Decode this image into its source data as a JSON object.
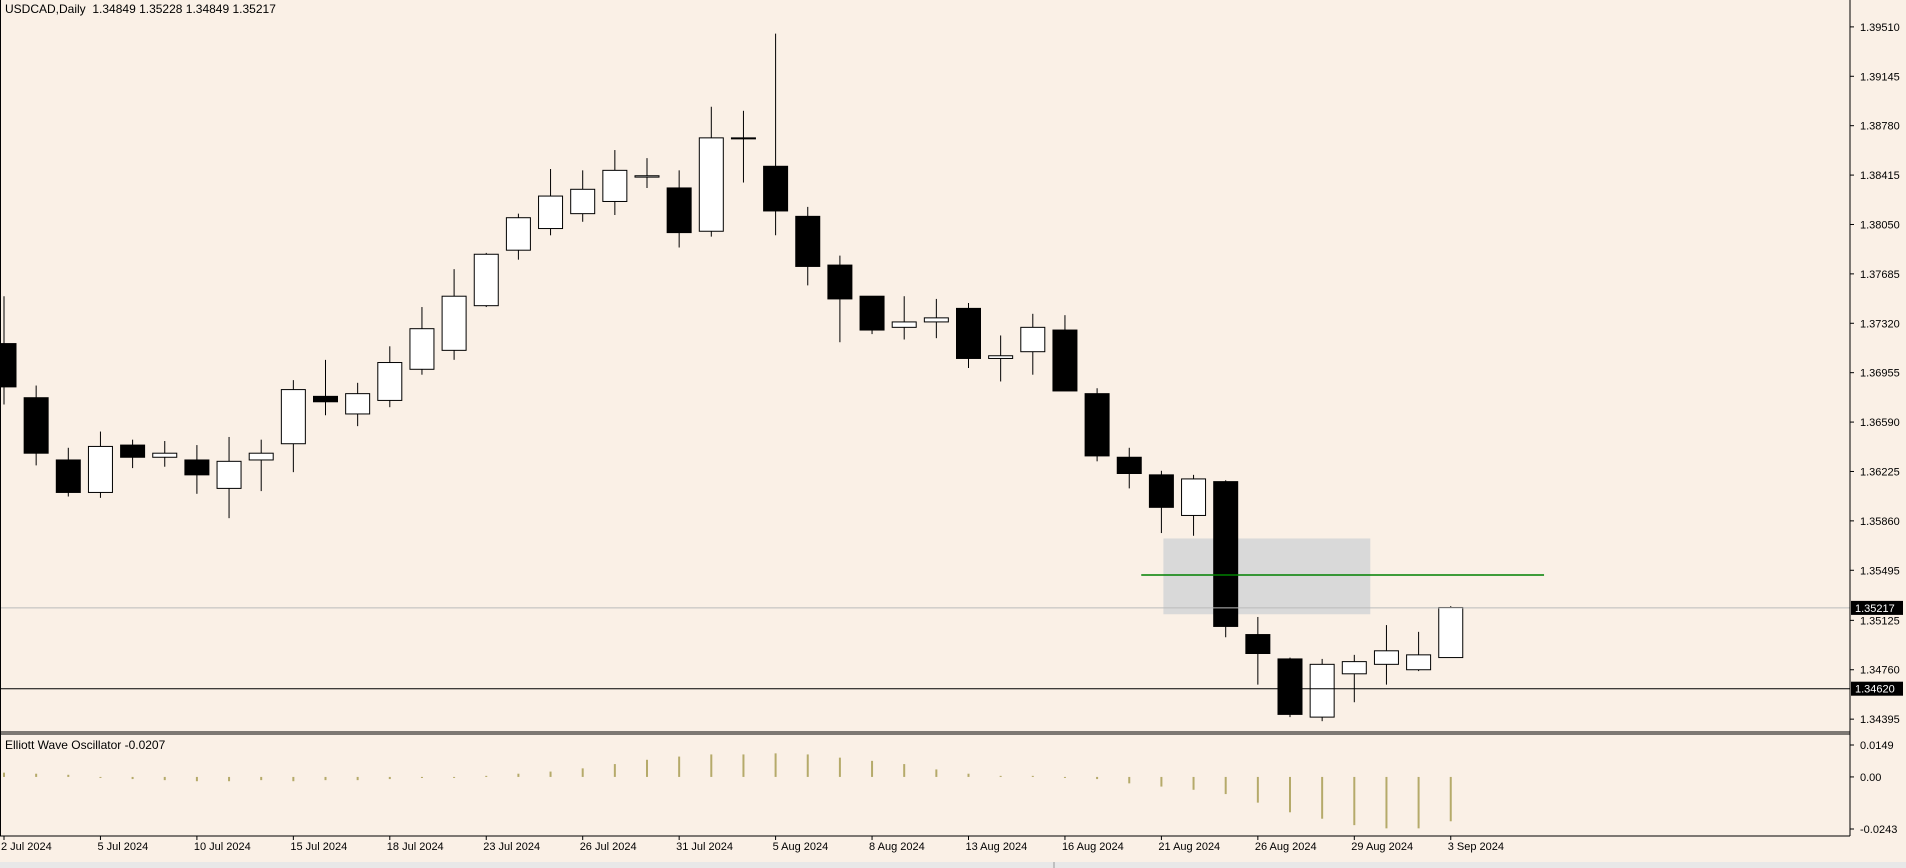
{
  "header": {
    "symbol": "USDCAD,Daily",
    "ohlc": "1.34849 1.35228 1.34849 1.35217"
  },
  "oscillator": {
    "title": "Elliott Wave Oscillator -0.0207",
    "ticks": [
      "0.0149",
      "0.00",
      "-0.0243"
    ],
    "tick_values": [
      0.0149,
      0.0,
      -0.0243
    ]
  },
  "price_axis": {
    "ticks": [
      "1.39510",
      "1.39145",
      "1.38780",
      "1.38415",
      "1.38050",
      "1.37685",
      "1.37320",
      "1.36955",
      "1.36590",
      "1.36225",
      "1.35860",
      "1.35495",
      "1.35125",
      "1.34760",
      "1.34395"
    ],
    "current_price": "1.35217",
    "hline_price": "1.34620"
  },
  "date_axis": [
    "2 Jul 2024",
    "5 Jul 2024",
    "10 Jul 2024",
    "15 Jul 2024",
    "18 Jul 2024",
    "23 Jul 2024",
    "26 Jul 2024",
    "31 Jul 2024",
    "5 Aug 2024",
    "8 Aug 2024",
    "13 Aug 2024",
    "16 Aug 2024",
    "21 Aug 2024",
    "26 Aug 2024",
    "29 Aug 2024",
    "3 Sep 2024"
  ],
  "colors": {
    "background": "#FAF0E6",
    "bull_body": "#FFFFFF",
    "bear_body": "#000000",
    "osc_bar": "#B5AA6A",
    "green_line": "#008000",
    "zone": "#D9D9D9"
  },
  "chart_data": {
    "type": "candlestick",
    "title": "USDCAD,Daily",
    "ylim": [
      1.343,
      1.3962
    ],
    "zone": {
      "from_index": 36,
      "to_index": 42,
      "price_low": 1.3517,
      "price_high": 1.3573
    },
    "green_level": {
      "price": 1.3546,
      "from_index": 35,
      "to_index": 47
    },
    "candles": [
      {
        "date": "2 Jul 2024",
        "o": 1.3717,
        "h": 1.3752,
        "l": 1.3672,
        "c": 1.3685
      },
      {
        "date": "3 Jul 2024",
        "o": 1.3677,
        "h": 1.3686,
        "l": 1.3627,
        "c": 1.3636
      },
      {
        "date": "4 Jul 2024",
        "o": 1.3631,
        "h": 1.364,
        "l": 1.3604,
        "c": 1.3607
      },
      {
        "date": "5 Jul 2024",
        "o": 1.3607,
        "h": 1.3652,
        "l": 1.3603,
        "c": 1.3641
      },
      {
        "date": "8 Jul 2024",
        "o": 1.3642,
        "h": 1.3646,
        "l": 1.3625,
        "c": 1.3633
      },
      {
        "date": "9 Jul 2024",
        "o": 1.3633,
        "h": 1.3645,
        "l": 1.3626,
        "c": 1.3636
      },
      {
        "date": "10 Jul 2024",
        "o": 1.3631,
        "h": 1.3642,
        "l": 1.3606,
        "c": 1.362
      },
      {
        "date": "11 Jul 2024",
        "o": 1.361,
        "h": 1.3648,
        "l": 1.3588,
        "c": 1.363
      },
      {
        "date": "12 Jul 2024",
        "o": 1.3631,
        "h": 1.3646,
        "l": 1.3608,
        "c": 1.3636
      },
      {
        "date": "15 Jul 2024",
        "o": 1.3643,
        "h": 1.369,
        "l": 1.3622,
        "c": 1.3683
      },
      {
        "date": "16 Jul 2024",
        "o": 1.3678,
        "h": 1.3705,
        "l": 1.3664,
        "c": 1.3674
      },
      {
        "date": "17 Jul 2024",
        "o": 1.3665,
        "h": 1.3688,
        "l": 1.3656,
        "c": 1.368
      },
      {
        "date": "18 Jul 2024",
        "o": 1.3675,
        "h": 1.3715,
        "l": 1.367,
        "c": 1.3703
      },
      {
        "date": "19 Jul 2024",
        "o": 1.3698,
        "h": 1.3744,
        "l": 1.3694,
        "c": 1.3728
      },
      {
        "date": "22 Jul 2024",
        "o": 1.3712,
        "h": 1.3772,
        "l": 1.3705,
        "c": 1.3752
      },
      {
        "date": "23 Jul 2024",
        "o": 1.3745,
        "h": 1.3784,
        "l": 1.3744,
        "c": 1.3783
      },
      {
        "date": "24 Jul 2024",
        "o": 1.3786,
        "h": 1.3813,
        "l": 1.3779,
        "c": 1.381
      },
      {
        "date": "25 Jul 2024",
        "o": 1.3802,
        "h": 1.3846,
        "l": 1.3797,
        "c": 1.3826
      },
      {
        "date": "26 Jul 2024",
        "o": 1.3813,
        "h": 1.3845,
        "l": 1.3807,
        "c": 1.3831
      },
      {
        "date": "29 Jul 2024",
        "o": 1.3822,
        "h": 1.386,
        "l": 1.3812,
        "c": 1.3845
      },
      {
        "date": "30 Jul 2024",
        "o": 1.384,
        "h": 1.3854,
        "l": 1.3832,
        "c": 1.3841
      },
      {
        "date": "31 Jul 2024",
        "o": 1.3832,
        "h": 1.3845,
        "l": 1.3788,
        "c": 1.3799
      },
      {
        "date": "1 Aug 2024",
        "o": 1.38,
        "h": 1.3892,
        "l": 1.3796,
        "c": 1.3869
      },
      {
        "date": "2 Aug 2024",
        "o": 1.3869,
        "h": 1.3889,
        "l": 1.3836,
        "c": 1.3869
      },
      {
        "date": "5 Aug 2024",
        "o": 1.3848,
        "h": 1.3946,
        "l": 1.3797,
        "c": 1.3815
      },
      {
        "date": "6 Aug 2024",
        "o": 1.3811,
        "h": 1.3818,
        "l": 1.376,
        "c": 1.3774
      },
      {
        "date": "7 Aug 2024",
        "o": 1.3775,
        "h": 1.3782,
        "l": 1.3718,
        "c": 1.375
      },
      {
        "date": "8 Aug 2024",
        "o": 1.3752,
        "h": 1.3751,
        "l": 1.3724,
        "c": 1.3727
      },
      {
        "date": "9 Aug 2024",
        "o": 1.3729,
        "h": 1.3752,
        "l": 1.372,
        "c": 1.3733
      },
      {
        "date": "12 Aug 2024",
        "o": 1.3733,
        "h": 1.375,
        "l": 1.3721,
        "c": 1.3736
      },
      {
        "date": "13 Aug 2024",
        "o": 1.3743,
        "h": 1.3747,
        "l": 1.3699,
        "c": 1.3706
      },
      {
        "date": "14 Aug 2024",
        "o": 1.3706,
        "h": 1.3723,
        "l": 1.3689,
        "c": 1.3708
      },
      {
        "date": "15 Aug 2024",
        "o": 1.3711,
        "h": 1.3739,
        "l": 1.3694,
        "c": 1.3729
      },
      {
        "date": "16 Aug 2024",
        "o": 1.3727,
        "h": 1.3738,
        "l": 1.3683,
        "c": 1.3682
      },
      {
        "date": "19 Aug 2024",
        "o": 1.368,
        "h": 1.3684,
        "l": 1.363,
        "c": 1.3634
      },
      {
        "date": "20 Aug 2024",
        "o": 1.3633,
        "h": 1.364,
        "l": 1.361,
        "c": 1.3621
      },
      {
        "date": "21 Aug 2024",
        "o": 1.362,
        "h": 1.3623,
        "l": 1.3577,
        "c": 1.3596
      },
      {
        "date": "22 Aug 2024",
        "o": 1.359,
        "h": 1.362,
        "l": 1.3575,
        "c": 1.3617
      },
      {
        "date": "23 Aug 2024",
        "o": 1.3615,
        "h": 1.3616,
        "l": 1.35,
        "c": 1.3508
      },
      {
        "date": "26 Aug 2024",
        "o": 1.3502,
        "h": 1.3515,
        "l": 1.3465,
        "c": 1.3488
      },
      {
        "date": "27 Aug 2024",
        "o": 1.3484,
        "h": 1.3485,
        "l": 1.3441,
        "c": 1.3443
      },
      {
        "date": "28 Aug 2024",
        "o": 1.3441,
        "h": 1.3484,
        "l": 1.3438,
        "c": 1.348
      },
      {
        "date": "29 Aug 2024",
        "o": 1.3473,
        "h": 1.3487,
        "l": 1.3452,
        "c": 1.3482
      },
      {
        "date": "30 Aug 2024",
        "o": 1.348,
        "h": 1.3509,
        "l": 1.3465,
        "c": 1.349
      },
      {
        "date": "2 Sep 2024",
        "o": 1.3476,
        "h": 1.3504,
        "l": 1.3475,
        "c": 1.3487
      },
      {
        "date": "3 Sep 2024",
        "o": 1.3485,
        "h": 1.3523,
        "l": 1.3485,
        "c": 1.3522
      }
    ],
    "osc_values": [
      0.002,
      0.0015,
      0.001,
      0.0,
      -0.001,
      -0.0015,
      -0.002,
      -0.002,
      -0.0015,
      -0.002,
      -0.0015,
      -0.0015,
      -0.001,
      -0.0005,
      0.0,
      0.0005,
      0.0015,
      0.0025,
      0.004,
      0.006,
      0.008,
      0.0095,
      0.0105,
      0.0105,
      0.011,
      0.0105,
      0.009,
      0.0075,
      0.006,
      0.0035,
      0.0015,
      0.0005,
      0.0005,
      0.0,
      -0.001,
      -0.003,
      -0.0045,
      -0.006,
      -0.008,
      -0.012,
      -0.0165,
      -0.0195,
      -0.0225,
      -0.024,
      -0.024,
      -0.0207
    ]
  }
}
